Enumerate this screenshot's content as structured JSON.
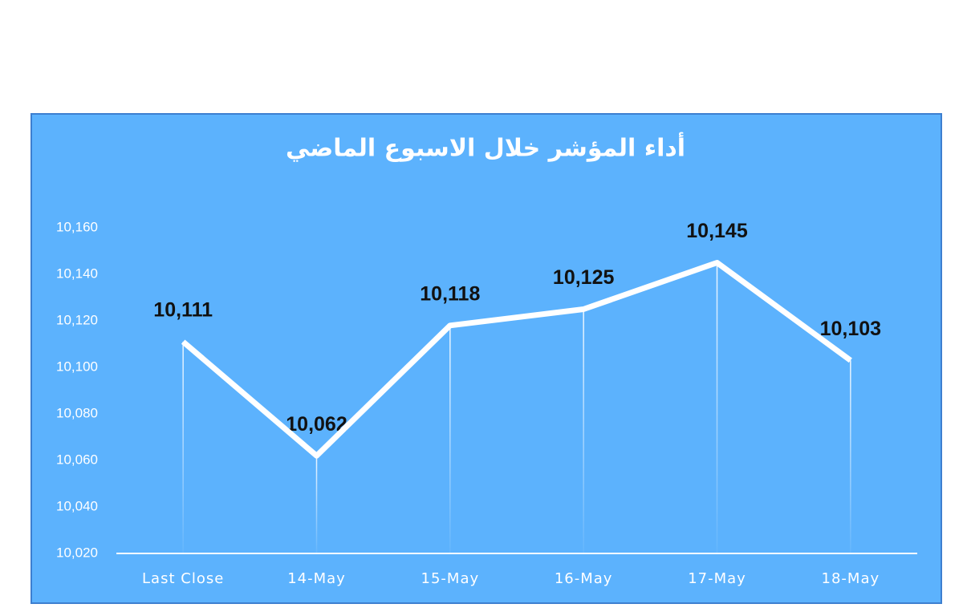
{
  "chart_data": {
    "type": "line",
    "title": "أداء المؤشر خلال الاسبوع الماضي",
    "categories": [
      "Last Close",
      "14-May",
      "15-May",
      "16-May",
      "17-May",
      "18-May"
    ],
    "values": [
      10111,
      10062,
      10118,
      10125,
      10145,
      10103
    ],
    "value_labels": [
      "10,111",
      "10,062",
      "10,118",
      "10,125",
      "10,145",
      "10,103"
    ],
    "color": "#ffffff",
    "ylim": [
      10020,
      10160
    ],
    "yticks": [
      {
        "value": 10020,
        "label": "10,020"
      },
      {
        "value": 10040,
        "label": "10,040"
      },
      {
        "value": 10060,
        "label": "10,060"
      },
      {
        "value": 10080,
        "label": "10,080"
      },
      {
        "value": 10100,
        "label": "10,100"
      },
      {
        "value": 10120,
        "label": "10,120"
      },
      {
        "value": 10140,
        "label": "10,140"
      },
      {
        "value": 10160,
        "label": "10,160"
      }
    ],
    "drop_lines": true
  }
}
